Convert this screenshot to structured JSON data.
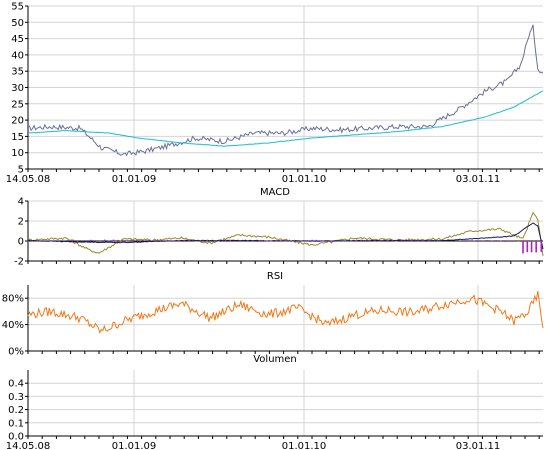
{
  "chart_data": [
    {
      "type": "line",
      "name": "price",
      "title": "",
      "x_ticks": [
        "14.05.08",
        "01.01.09",
        "01.01.10",
        "03.01.11"
      ],
      "y_ticks": [
        "5",
        "10",
        "15",
        "20",
        "25",
        "30",
        "35",
        "40",
        "45",
        "50",
        "55"
      ],
      "ylim": [
        5,
        55
      ],
      "grid": true,
      "series": [
        {
          "color": "#6a6f9a",
          "x": [
            "14.05.08",
            "01.07.08",
            "01.09.08",
            "15.10.08",
            "01.12.08",
            "15.01.09",
            "01.03.09",
            "01.05.09",
            "01.07.09",
            "01.09.09",
            "01.11.09",
            "01.01.10",
            "01.03.10",
            "01.05.10",
            "01.07.10",
            "01.09.10",
            "01.11.10",
            "01.01.11",
            "15.02.11",
            "15.03.11",
            "25.03.11",
            "01.04.11",
            "10.04.11",
            "20.04.11",
            "01.05.11"
          ],
          "values": [
            17.5,
            18.0,
            17.5,
            11.5,
            9.5,
            10.5,
            12.0,
            14.5,
            13.5,
            16.0,
            16.0,
            17.5,
            17.0,
            17.5,
            18.0,
            18.0,
            23.0,
            29.0,
            32.0,
            37.0,
            42.0,
            46.0,
            48.5,
            36.0,
            34.5
          ]
        },
        {
          "color": "#19bcd1",
          "x": [
            "14.05.08",
            "01.08.08",
            "01.11.08",
            "01.01.09",
            "01.04.09",
            "01.07.09",
            "01.10.09",
            "01.01.10",
            "01.04.10",
            "01.07.10",
            "01.10.10",
            "01.01.11",
            "01.03.11",
            "01.05.11"
          ],
          "values": [
            16.0,
            16.8,
            16.0,
            14.5,
            13.0,
            12.0,
            13.0,
            14.5,
            15.5,
            16.5,
            18.0,
            21.0,
            24.0,
            29.0
          ]
        }
      ]
    },
    {
      "type": "line",
      "name": "macd",
      "title": "MACD",
      "x_ticks": [],
      "y_ticks": [
        "-2",
        "0",
        "2",
        "4"
      ],
      "ylim": [
        -2,
        4
      ],
      "grid": true,
      "series": [
        {
          "color": "#9a8a2a",
          "x": [
            "14.05.08",
            "01.08.08",
            "20.09.08",
            "10.10.08",
            "01.12.08",
            "01.02.09",
            "01.04.09",
            "01.06.09",
            "01.08.09",
            "01.10.09",
            "01.01.10",
            "01.04.10",
            "01.07.10",
            "01.10.10",
            "01.12.10",
            "01.02.11",
            "01.03.11",
            "20.03.11",
            "10.04.11",
            "20.04.11",
            "01.05.11"
          ],
          "values": [
            0.1,
            0.3,
            -0.9,
            -1.2,
            0.2,
            0.1,
            0.3,
            -0.2,
            0.6,
            0.4,
            -0.4,
            0.3,
            0.1,
            0.2,
            1.0,
            1.2,
            0.6,
            0.2,
            2.8,
            2.2,
            -1.5
          ]
        },
        {
          "color": "#1a1a6a",
          "x": [
            "14.05.08",
            "01.09.08",
            "01.12.08",
            "01.04.09",
            "01.08.09",
            "01.01.10",
            "01.06.10",
            "01.10.10",
            "01.01.11",
            "01.03.11",
            "10.04.11",
            "20.04.11",
            "01.05.11"
          ],
          "values": [
            0.05,
            -0.1,
            -0.15,
            0.05,
            0.05,
            0.0,
            0.05,
            0.05,
            0.3,
            0.5,
            1.8,
            1.5,
            -0.8
          ]
        }
      ]
    },
    {
      "type": "line",
      "name": "rsi",
      "title": "RSI",
      "x_ticks": [],
      "y_ticks": [
        "0%",
        "40%",
        "80%"
      ],
      "ylim": [
        0,
        100
      ],
      "grid": true,
      "series": [
        {
          "color": "#f07a1a",
          "x": [
            "14.05.08",
            "01.07.08",
            "01.09.08",
            "15.10.08",
            "01.12.08",
            "01.02.09",
            "01.04.09",
            "01.06.09",
            "01.08.09",
            "01.10.09",
            "01.12.09",
            "01.02.10",
            "01.04.10",
            "01.06.10",
            "01.08.10",
            "01.10.10",
            "01.12.10",
            "01.02.11",
            "01.03.11",
            "01.04.11",
            "20.04.11",
            "01.05.11"
          ],
          "values": [
            55,
            60,
            50,
            30,
            45,
            60,
            72,
            50,
            70,
            55,
            65,
            40,
            55,
            62,
            58,
            70,
            80,
            60,
            45,
            60,
            85,
            35
          ]
        }
      ]
    },
    {
      "type": "bar",
      "name": "volume",
      "title": "Volumen",
      "x_ticks": [
        "14.05.08",
        "01.01.09",
        "01.01.10",
        "03.01.11"
      ],
      "y_ticks": [
        "0.0",
        "0.1",
        "0.2",
        "0.3",
        "0.4"
      ],
      "ylim": [
        0,
        0.5
      ],
      "grid": true,
      "series": []
    }
  ]
}
